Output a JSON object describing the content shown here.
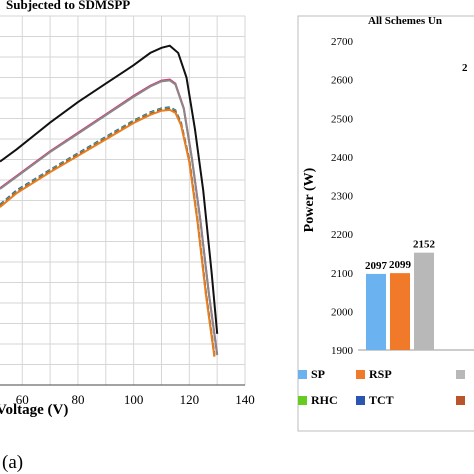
{
  "figure_label": "(a)",
  "chart_data": [
    {
      "type": "line",
      "title": "Subjected to SDMSPP",
      "xlabel": "Voltage (V)",
      "ylabel": "",
      "xlim": [
        52,
        140
      ],
      "x_ticks": [
        "60",
        "80",
        "100",
        "120",
        "140"
      ],
      "grid": true,
      "series": [
        {
          "color": "#111111",
          "dash": "solid",
          "x": [
            52,
            58,
            70,
            80,
            90,
            100,
            106,
            110,
            113,
            116,
            119,
            122,
            125,
            128,
            130
          ],
          "y": [
            2090,
            2150,
            2280,
            2380,
            2470,
            2560,
            2620,
            2645,
            2655,
            2620,
            2500,
            2250,
            1950,
            1550,
            1250
          ]
        },
        {
          "color": "#e0307a",
          "dash": "solid",
          "x": [
            52,
            58,
            70,
            80,
            90,
            100,
            106,
            110,
            113,
            115,
            118,
            121,
            124,
            127,
            129,
            130
          ],
          "y": [
            1960,
            2020,
            2140,
            2230,
            2320,
            2410,
            2460,
            2485,
            2490,
            2470,
            2350,
            2100,
            1800,
            1450,
            1250,
            1150
          ]
        },
        {
          "color": "#888888",
          "dash": "solid",
          "x": [
            52,
            58,
            70,
            80,
            90,
            100,
            106,
            110,
            113,
            115,
            118,
            121,
            124,
            127,
            129,
            130
          ],
          "y": [
            1956,
            2016,
            2136,
            2226,
            2316,
            2406,
            2456,
            2481,
            2486,
            2466,
            2346,
            2096,
            1796,
            1446,
            1246,
            1146
          ]
        },
        {
          "color": "#3355cc",
          "dash": "dashed",
          "x": [
            52,
            58,
            70,
            80,
            90,
            100,
            106,
            110,
            113,
            115,
            117,
            120,
            123,
            126,
            128,
            129
          ],
          "y": [
            1880,
            1950,
            2050,
            2130,
            2210,
            2290,
            2330,
            2350,
            2355,
            2340,
            2280,
            2100,
            1800,
            1450,
            1250,
            1150
          ]
        },
        {
          "color": "#55cc22",
          "dash": "dashed",
          "x": [
            52,
            58,
            70,
            80,
            90,
            100,
            106,
            110,
            113,
            115,
            117,
            120,
            123,
            126,
            128,
            129
          ],
          "y": [
            1876,
            1944,
            2046,
            2126,
            2206,
            2286,
            2326,
            2346,
            2350,
            2336,
            2276,
            2096,
            1796,
            1446,
            1246,
            1146
          ]
        },
        {
          "color": "#c0392b",
          "dash": "dashed",
          "x": [
            52,
            58,
            70,
            80,
            90,
            100,
            106,
            110,
            113,
            115,
            117,
            120,
            123,
            126,
            128,
            129
          ],
          "y": [
            1872,
            1940,
            2042,
            2122,
            2202,
            2282,
            2322,
            2342,
            2346,
            2332,
            2272,
            2092,
            1792,
            1442,
            1242,
            1142
          ]
        },
        {
          "color": "#e67e22",
          "dash": "solid",
          "x": [
            52,
            58,
            70,
            80,
            90,
            100,
            106,
            110,
            113,
            115,
            117,
            120,
            123,
            126,
            128,
            129
          ],
          "y": [
            1868,
            1936,
            2038,
            2118,
            2198,
            2278,
            2318,
            2338,
            2342,
            2328,
            2268,
            2088,
            1788,
            1438,
            1238,
            1138
          ]
        }
      ]
    },
    {
      "type": "bar",
      "title": "All Schemes Un",
      "ylabel": "Power (W)",
      "ylim": [
        1900,
        2700
      ],
      "y_ticks": [
        "1900",
        "2000",
        "2100",
        "2200",
        "2300",
        "2400",
        "2500",
        "2600",
        "2700"
      ],
      "categories": [
        "SP",
        "RSP",
        ""
      ],
      "values": [
        2097,
        2099,
        2152
      ],
      "data_labels": [
        "2097",
        "2099",
        "2152"
      ],
      "bar_colors": [
        "#6ab3f0",
        "#f07a2a",
        "#b8b8b8"
      ],
      "partial_label": "2",
      "legend": [
        {
          "label": "SP",
          "color": "#6ab3f0"
        },
        {
          "label": "RSP",
          "color": "#f07a2a"
        },
        {
          "label": "",
          "color": "#b8b8b8"
        },
        {
          "label": "RHC",
          "color": "#66cc22"
        },
        {
          "label": "TCT",
          "color": "#2a55b0"
        },
        {
          "label": "",
          "color": "#b8552a"
        }
      ]
    }
  ]
}
